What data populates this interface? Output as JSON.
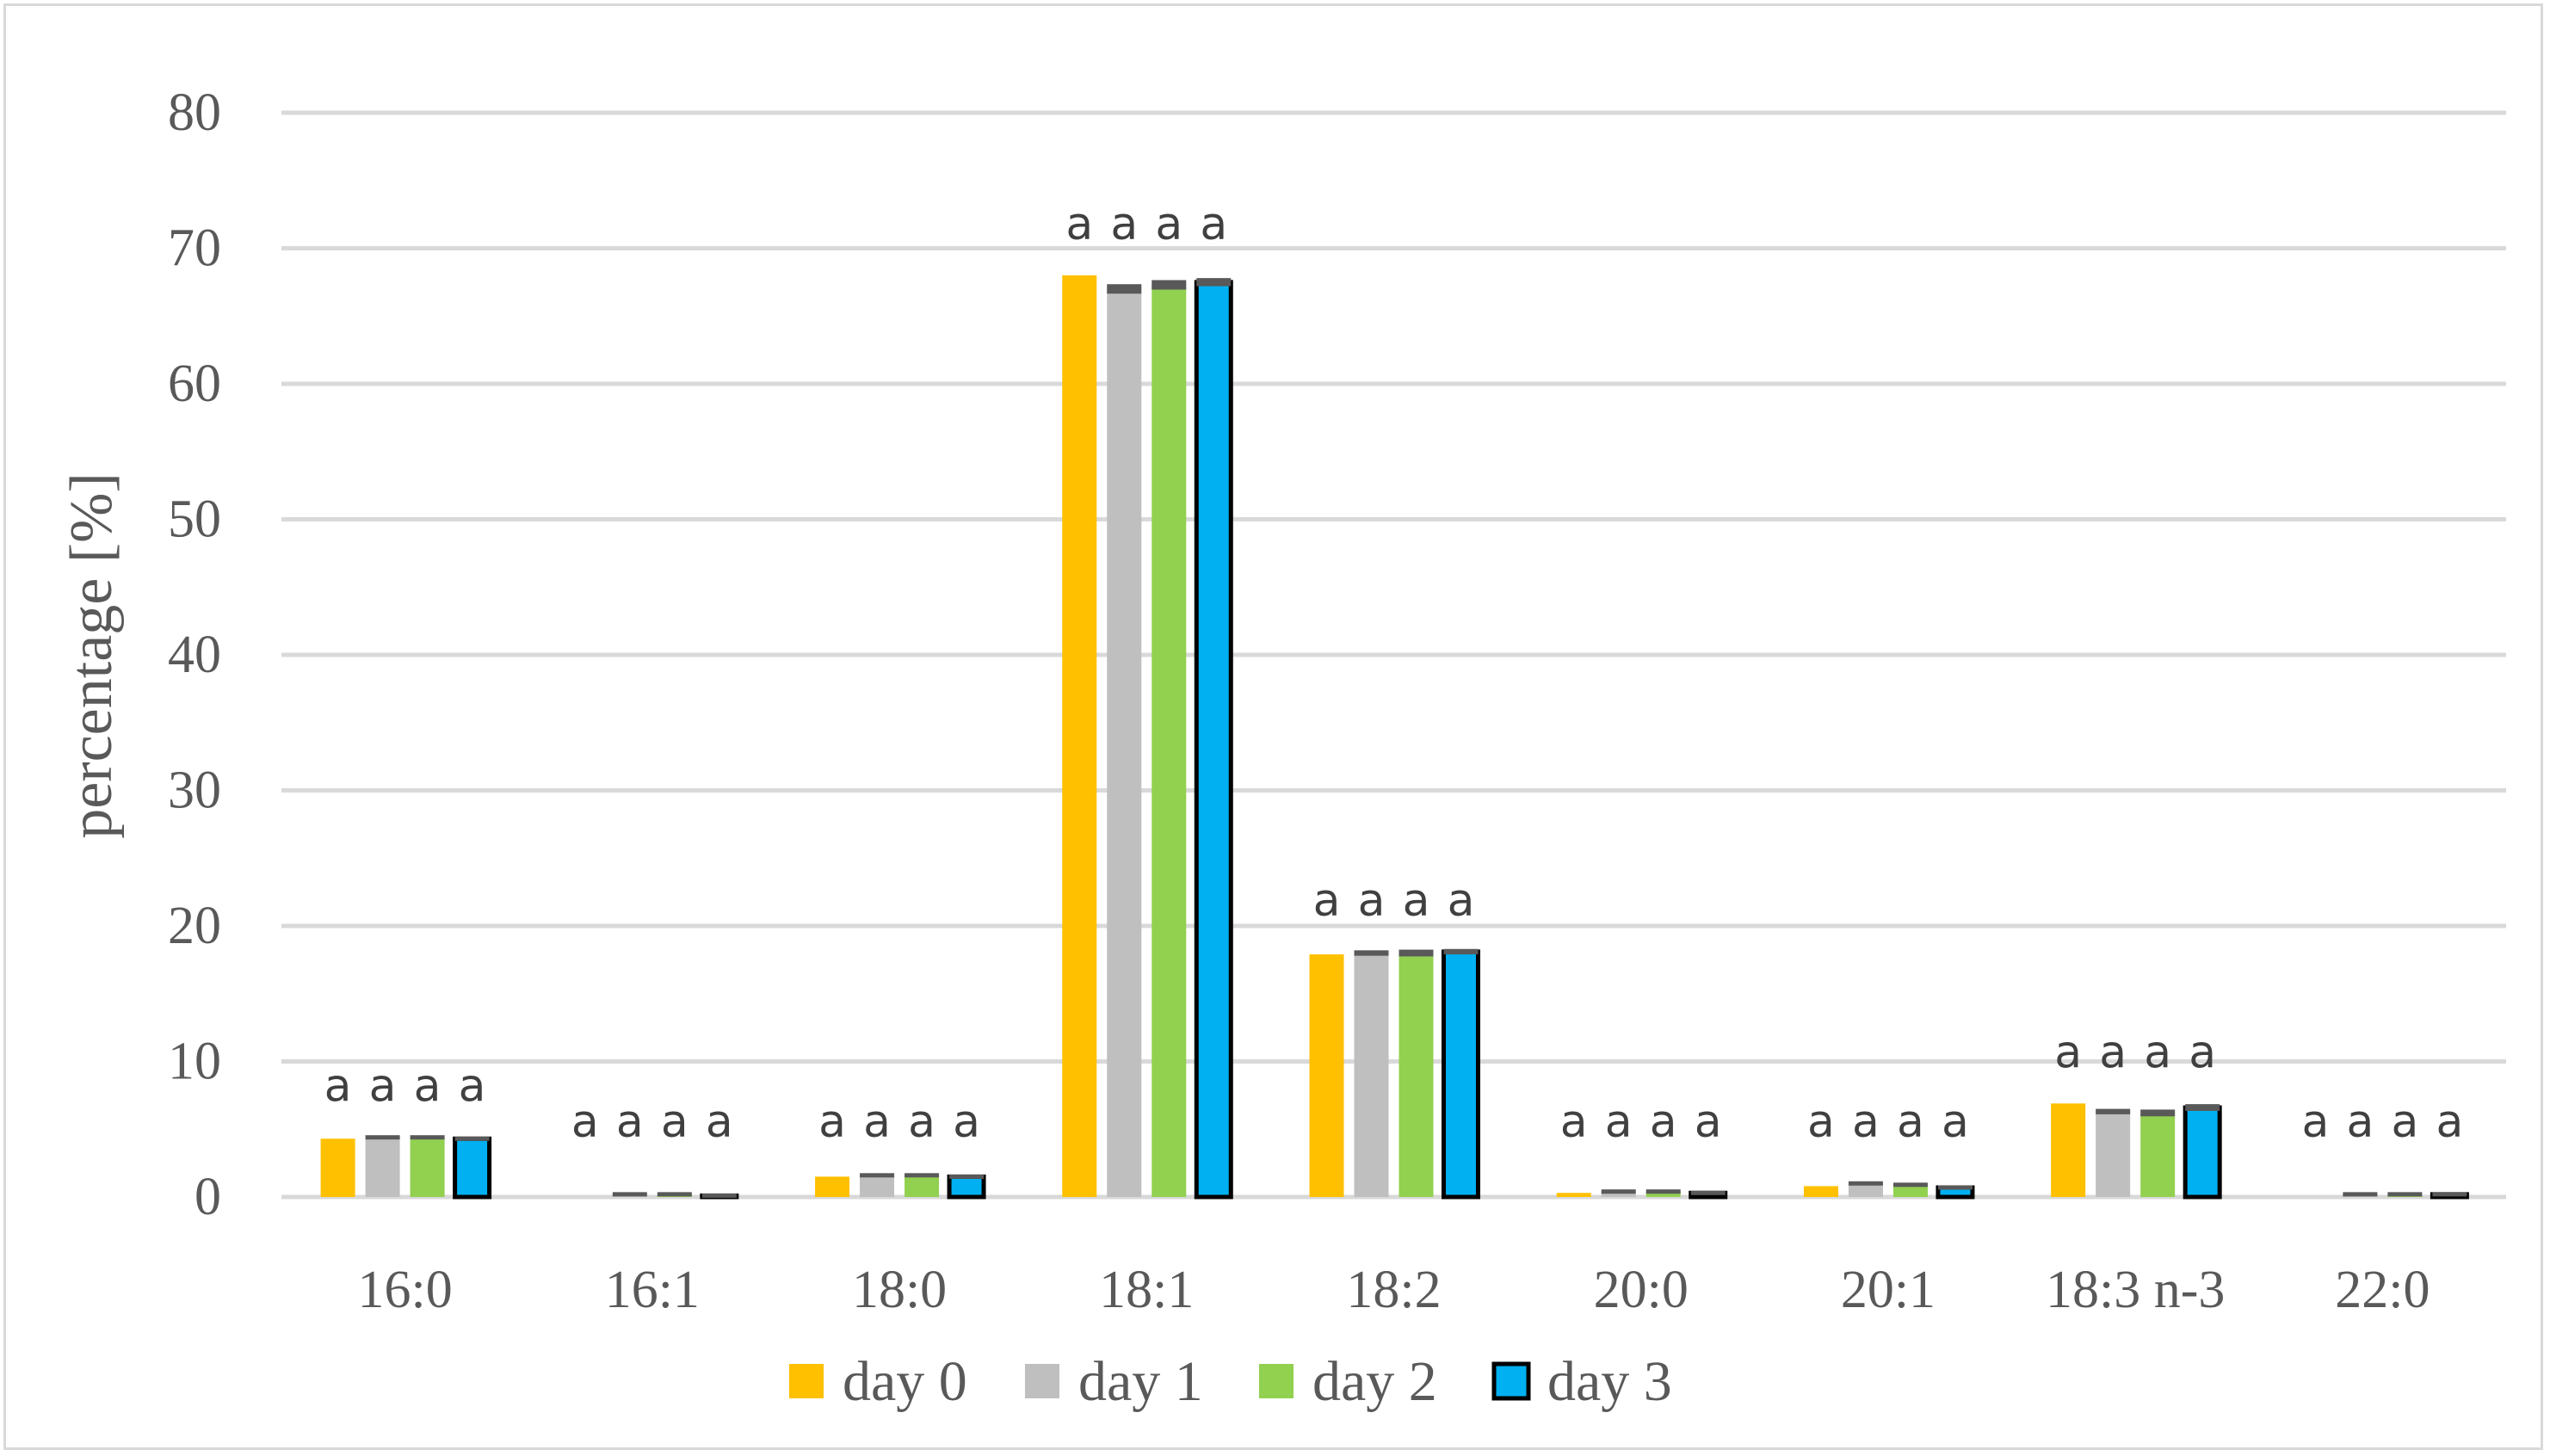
{
  "chart_data": {
    "type": "bar",
    "ylabel": "percentage [%]",
    "xlabel": "",
    "ylim": [
      0,
      80
    ],
    "yticks": [
      0,
      10,
      20,
      30,
      40,
      50,
      60,
      70,
      80
    ],
    "grid": true,
    "legend_position": "bottom",
    "categories": [
      "16:0",
      "16:1",
      "18:0",
      "18:1",
      "18:2",
      "20:0",
      "20:1",
      "18:3 n-3",
      "22:0"
    ],
    "series": [
      {
        "name": "day 0",
        "color": "#ffc000",
        "outlined": false,
        "values": [
          4.3,
          0.0,
          1.5,
          68.0,
          17.9,
          0.3,
          0.8,
          6.9,
          0.0
        ],
        "errors": [
          0,
          0,
          0,
          0,
          0,
          0,
          0,
          0,
          0
        ],
        "sig": [
          "a",
          "a",
          "a",
          "a",
          "a",
          "a",
          "a",
          "a",
          "a"
        ]
      },
      {
        "name": "day 1",
        "color": "#bfbfbf",
        "outlined": false,
        "values": [
          4.4,
          0.2,
          1.6,
          67.0,
          18.0,
          0.4,
          1.0,
          6.3,
          0.2
        ],
        "errors": [
          0.3,
          0.1,
          0.2,
          0.7,
          0.4,
          0.1,
          0.2,
          0.4,
          0.1
        ],
        "sig": [
          "a",
          "a",
          "a",
          "a",
          "a",
          "a",
          "a",
          "a",
          "a"
        ]
      },
      {
        "name": "day 2",
        "color": "#92d050",
        "outlined": false,
        "values": [
          4.4,
          0.2,
          1.6,
          67.3,
          18.0,
          0.4,
          0.9,
          6.2,
          0.2
        ],
        "errors": [
          0.3,
          0.1,
          0.2,
          0.7,
          0.5,
          0.1,
          0.2,
          0.5,
          0.1
        ],
        "sig": [
          "a",
          "a",
          "a",
          "a",
          "a",
          "a",
          "a",
          "a",
          "a"
        ]
      },
      {
        "name": "day 3",
        "color": "#00b0f0",
        "outlined": true,
        "values": [
          4.3,
          0.1,
          1.5,
          67.5,
          18.1,
          0.3,
          0.7,
          6.6,
          0.2
        ],
        "errors": [
          0.3,
          0.1,
          0.2,
          0.6,
          0.4,
          0.1,
          0.1,
          0.5,
          0.1
        ],
        "sig": [
          "a",
          "a",
          "a",
          "a",
          "a",
          "a",
          "a",
          "a",
          "a"
        ]
      }
    ]
  }
}
